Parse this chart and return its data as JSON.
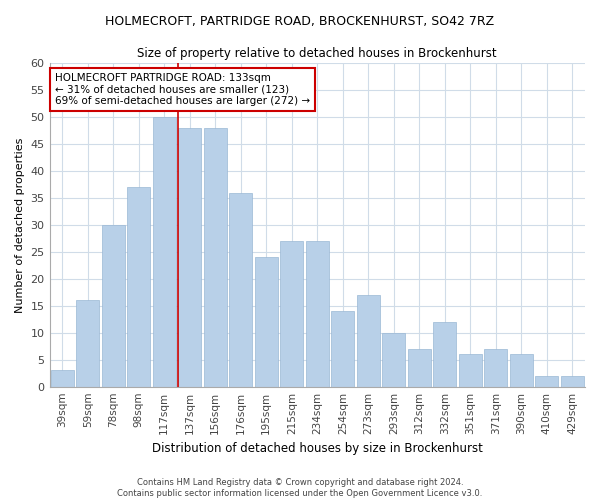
{
  "title1": "HOLMECROFT, PARTRIDGE ROAD, BROCKENHURST, SO42 7RZ",
  "title2": "Size of property relative to detached houses in Brockenhurst",
  "xlabel": "Distribution of detached houses by size in Brockenhurst",
  "ylabel": "Number of detached properties",
  "categories": [
    "39sqm",
    "59sqm",
    "78sqm",
    "98sqm",
    "117sqm",
    "137sqm",
    "156sqm",
    "176sqm",
    "195sqm",
    "215sqm",
    "234sqm",
    "254sqm",
    "273sqm",
    "293sqm",
    "312sqm",
    "332sqm",
    "351sqm",
    "371sqm",
    "390sqm",
    "410sqm",
    "429sqm"
  ],
  "values": [
    3,
    16,
    30,
    37,
    50,
    48,
    48,
    36,
    24,
    27,
    27,
    14,
    17,
    10,
    7,
    12,
    6,
    7,
    6,
    2,
    2
  ],
  "bar_color": "#b8d0e8",
  "bar_edge_color": "#9ab8d4",
  "marker_label": "HOLMECROFT PARTRIDGE ROAD: 133sqm",
  "marker_line1": "← 31% of detached houses are smaller (123)",
  "marker_line2": "69% of semi-detached houses are larger (272) →",
  "annotation_box_color": "#ffffff",
  "annotation_box_edge": "#cc0000",
  "vline_color": "#cc0000",
  "vline_x_index": 5,
  "ylim": [
    0,
    60
  ],
  "yticks": [
    0,
    5,
    10,
    15,
    20,
    25,
    30,
    35,
    40,
    45,
    50,
    55,
    60
  ],
  "footer1": "Contains HM Land Registry data © Crown copyright and database right 2024.",
  "footer2": "Contains public sector information licensed under the Open Government Licence v3.0.",
  "bg_color": "#ffffff",
  "plot_bg_color": "#ffffff",
  "grid_color": "#d0dce8"
}
